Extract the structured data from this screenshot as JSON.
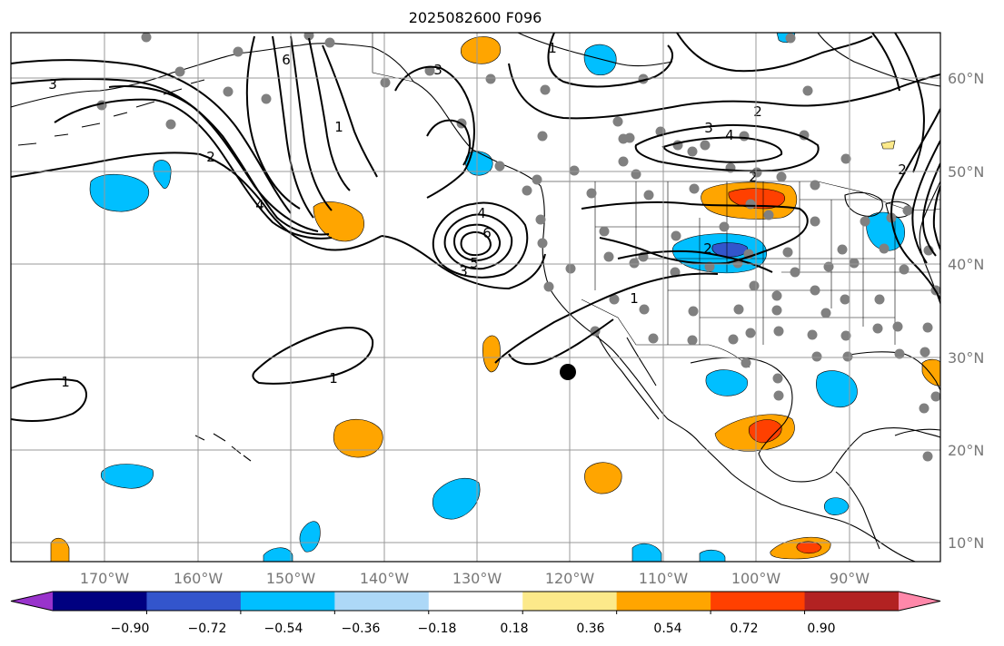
{
  "title": "2025082600 F096",
  "map": {
    "lon_labels": [
      "170°W",
      "160°W",
      "150°W",
      "140°W",
      "130°W",
      "120°W",
      "110°W",
      "100°W",
      "90°W"
    ],
    "lat_labels": [
      "60°N",
      "50°N",
      "40°N",
      "30°N",
      "20°N",
      "10°N"
    ],
    "contour_labels": [
      "3",
      "2",
      "4",
      "6",
      "1",
      "3",
      "4",
      "6",
      "5",
      "3",
      "1",
      "1",
      "3",
      "2",
      "4",
      "2",
      "2",
      "2",
      "1",
      "1"
    ]
  },
  "colorbar": {
    "tick_labels": [
      "−0.90",
      "−0.72",
      "−0.54",
      "−0.36",
      "−0.18",
      "0.18",
      "0.36",
      "0.54",
      "0.72",
      "0.90"
    ],
    "colors": [
      "#9933cc",
      "#000080",
      "#3355cc",
      "#00bfff",
      "#add8f7",
      "#ffffff",
      "#fce98a",
      "#ffa500",
      "#ff4000",
      "#b22222",
      "#ff88aa"
    ]
  }
}
